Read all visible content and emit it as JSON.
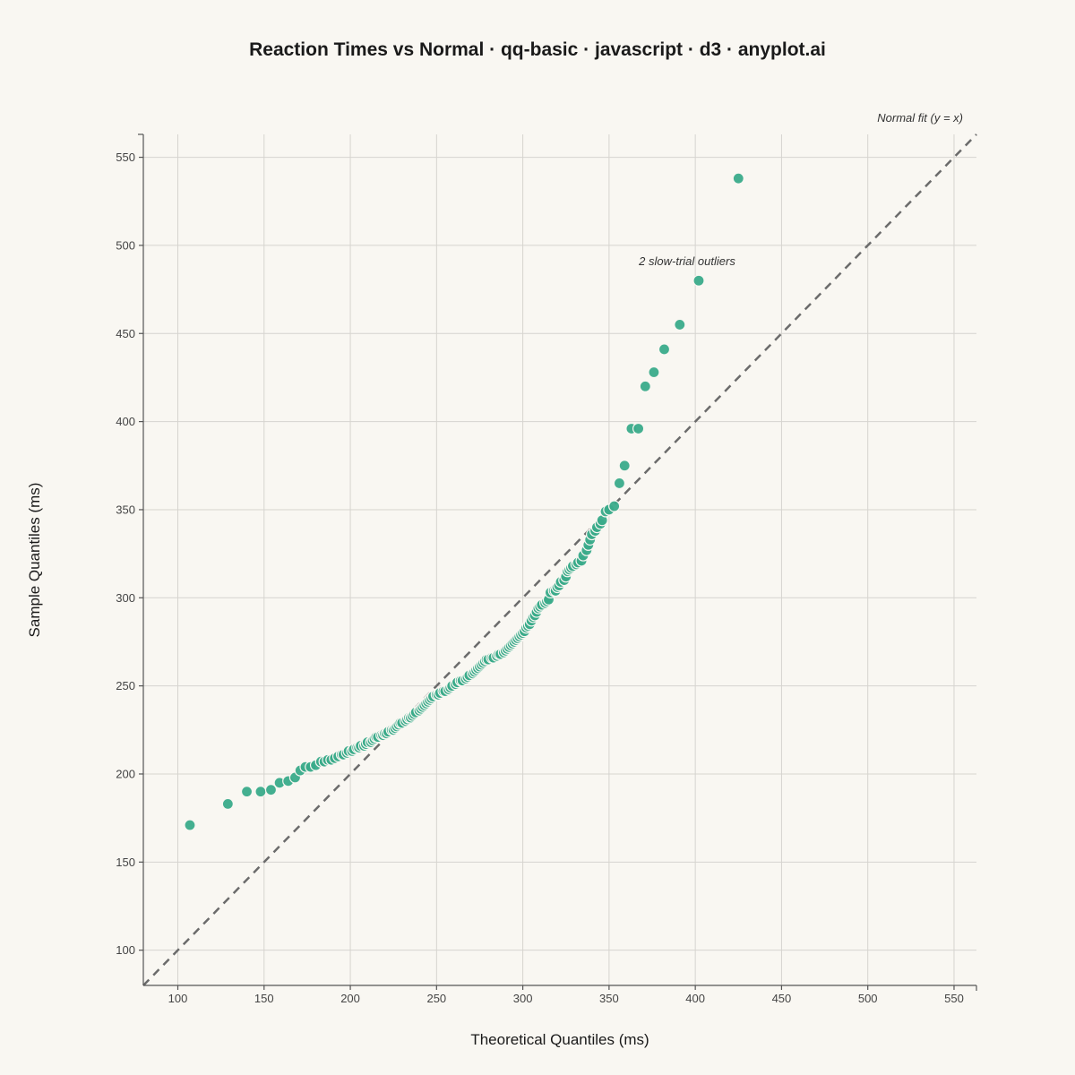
{
  "chart_data": {
    "type": "scatter",
    "title": "Reaction Times vs Normal · qq-basic · javascript · d3 · anyplot.ai",
    "xlabel": "Theoretical Quantiles (ms)",
    "ylabel": "Sample Quantiles (ms)",
    "xlim": [
      80,
      563
    ],
    "ylim": [
      80,
      563
    ],
    "xticks": [
      100,
      150,
      200,
      250,
      300,
      350,
      400,
      450,
      500,
      550
    ],
    "yticks": [
      100,
      150,
      200,
      250,
      300,
      350,
      400,
      450,
      500,
      550
    ],
    "grid": true,
    "reference_line_label": "Normal fit (y = x)",
    "outlier_annotation": "2 slow-trial outliers",
    "colors": {
      "point": "#3aab8a",
      "point_stroke": "#f9f7f2",
      "reference_line": "#6b6b6b",
      "background": "#f9f7f2"
    },
    "points": [
      [
        107,
        171
      ],
      [
        129,
        183
      ],
      [
        140,
        190
      ],
      [
        148,
        190
      ],
      [
        154,
        191
      ],
      [
        159,
        195
      ],
      [
        164,
        196
      ],
      [
        168,
        198
      ],
      [
        171,
        202
      ],
      [
        174,
        204
      ],
      [
        177,
        204
      ],
      [
        180,
        205
      ],
      [
        183,
        207
      ],
      [
        185,
        207
      ],
      [
        187,
        208
      ],
      [
        189,
        208
      ],
      [
        191,
        209
      ],
      [
        193,
        210
      ],
      [
        195,
        211
      ],
      [
        196,
        211
      ],
      [
        198,
        212
      ],
      [
        199,
        213
      ],
      [
        201,
        213
      ],
      [
        202,
        214
      ],
      [
        204,
        215
      ],
      [
        205,
        215
      ],
      [
        206,
        216
      ],
      [
        208,
        216
      ],
      [
        209,
        217
      ],
      [
        210,
        218
      ],
      [
        212,
        218
      ],
      [
        213,
        219
      ],
      [
        214,
        220
      ],
      [
        215,
        221
      ],
      [
        216,
        221
      ],
      [
        218,
        222
      ],
      [
        219,
        222
      ],
      [
        220,
        223
      ],
      [
        221,
        223
      ],
      [
        222,
        224
      ],
      [
        224,
        225
      ],
      [
        225,
        225
      ],
      [
        226,
        226
      ],
      [
        227,
        227
      ],
      [
        228,
        228
      ],
      [
        229,
        229
      ],
      [
        230,
        229
      ],
      [
        232,
        230
      ],
      [
        233,
        231
      ],
      [
        234,
        232
      ],
      [
        235,
        232
      ],
      [
        236,
        233
      ],
      [
        237,
        234
      ],
      [
        238,
        235
      ],
      [
        240,
        236
      ],
      [
        241,
        237
      ],
      [
        242,
        238
      ],
      [
        243,
        239
      ],
      [
        244,
        240
      ],
      [
        245,
        241
      ],
      [
        246,
        242
      ],
      [
        247,
        243
      ],
      [
        248,
        244
      ],
      [
        250,
        245
      ],
      [
        251,
        245
      ],
      [
        252,
        246
      ],
      [
        254,
        247
      ],
      [
        255,
        247
      ],
      [
        257,
        248
      ],
      [
        258,
        249
      ],
      [
        259,
        250
      ],
      [
        261,
        251
      ],
      [
        262,
        252
      ],
      [
        264,
        253
      ],
      [
        265,
        253
      ],
      [
        267,
        254
      ],
      [
        268,
        255
      ],
      [
        269,
        256
      ],
      [
        271,
        257
      ],
      [
        272,
        258
      ],
      [
        273,
        259
      ],
      [
        274,
        260
      ],
      [
        275,
        261
      ],
      [
        276,
        262
      ],
      [
        277,
        263
      ],
      [
        278,
        264
      ],
      [
        279,
        265
      ],
      [
        280,
        265
      ],
      [
        282,
        266
      ],
      [
        283,
        266
      ],
      [
        285,
        267
      ],
      [
        286,
        268
      ],
      [
        287,
        268
      ],
      [
        289,
        269
      ],
      [
        290,
        270
      ],
      [
        291,
        271
      ],
      [
        292,
        272
      ],
      [
        293,
        273
      ],
      [
        294,
        274
      ],
      [
        295,
        275
      ],
      [
        296,
        276
      ],
      [
        297,
        277
      ],
      [
        298,
        278
      ],
      [
        299,
        279
      ],
      [
        300,
        280
      ],
      [
        301,
        281
      ],
      [
        302,
        283
      ],
      [
        303,
        284
      ],
      [
        304,
        285
      ],
      [
        305,
        287
      ],
      [
        306,
        289
      ],
      [
        307,
        290
      ],
      [
        308,
        292
      ],
      [
        309,
        294
      ],
      [
        310,
        295
      ],
      [
        311,
        296
      ],
      [
        313,
        297
      ],
      [
        314,
        298
      ],
      [
        315,
        299
      ],
      [
        316,
        303
      ],
      [
        318,
        304
      ],
      [
        319,
        304
      ],
      [
        320,
        306
      ],
      [
        321,
        307
      ],
      [
        322,
        309
      ],
      [
        324,
        310
      ],
      [
        325,
        312
      ],
      [
        326,
        315
      ],
      [
        327,
        316
      ],
      [
        328,
        317
      ],
      [
        329,
        318
      ],
      [
        331,
        319
      ],
      [
        332,
        320
      ],
      [
        334,
        321
      ],
      [
        335,
        324
      ],
      [
        337,
        327
      ],
      [
        338,
        330
      ],
      [
        339,
        333
      ],
      [
        340,
        336
      ],
      [
        342,
        338
      ],
      [
        343,
        340
      ],
      [
        345,
        342
      ],
      [
        346,
        344
      ],
      [
        348,
        349
      ],
      [
        350,
        350
      ],
      [
        353,
        352
      ],
      [
        356,
        365
      ],
      [
        359,
        375
      ],
      [
        363,
        396
      ],
      [
        367,
        396
      ],
      [
        371,
        420
      ],
      [
        376,
        428
      ],
      [
        382,
        441
      ],
      [
        391,
        455
      ],
      [
        402,
        480
      ],
      [
        425,
        538
      ]
    ]
  }
}
